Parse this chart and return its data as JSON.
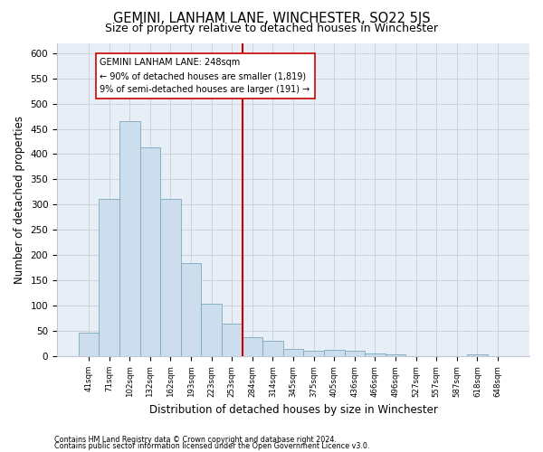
{
  "title": "GEMINI, LANHAM LANE, WINCHESTER, SO22 5JS",
  "subtitle": "Size of property relative to detached houses in Winchester",
  "xlabel": "Distribution of detached houses by size in Winchester",
  "ylabel": "Number of detached properties",
  "categories": [
    "41sqm",
    "71sqm",
    "102sqm",
    "132sqm",
    "162sqm",
    "193sqm",
    "223sqm",
    "253sqm",
    "284sqm",
    "314sqm",
    "345sqm",
    "375sqm",
    "405sqm",
    "436sqm",
    "466sqm",
    "496sqm",
    "527sqm",
    "557sqm",
    "587sqm",
    "618sqm",
    "648sqm"
  ],
  "values": [
    47,
    311,
    465,
    413,
    311,
    185,
    103,
    65,
    38,
    31,
    14,
    11,
    13,
    11,
    5,
    3,
    1,
    0,
    1,
    3,
    1
  ],
  "bar_color": "#ccdded",
  "bar_edge_color": "#7aaabb",
  "vline_x": 7.5,
  "vline_color": "#cc0000",
  "annotation_text": "GEMINI LANHAM LANE: 248sqm\n← 90% of detached houses are smaller (1,819)\n9% of semi-detached houses are larger (191) →",
  "annotation_box_facecolor": "#ffffff",
  "annotation_box_edgecolor": "#cc0000",
  "ylim": [
    0,
    620
  ],
  "yticks": [
    0,
    50,
    100,
    150,
    200,
    250,
    300,
    350,
    400,
    450,
    500,
    550,
    600
  ],
  "background_color": "#ffffff",
  "plot_background": "#e8eef5",
  "grid_color": "#c0c8d8",
  "footer1": "Contains HM Land Registry data © Crown copyright and database right 2024.",
  "footer2": "Contains public sector information licensed under the Open Government Licence v3.0."
}
